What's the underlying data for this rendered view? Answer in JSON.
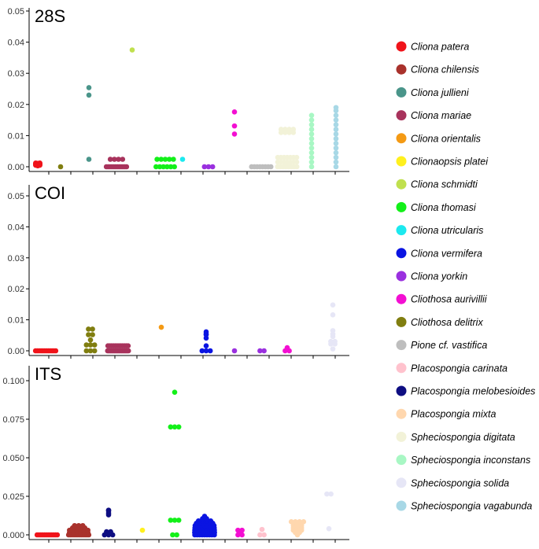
{
  "chart_data": {
    "type": "scatter",
    "title": "",
    "xlabel": "",
    "ylabel": "",
    "species": [
      {
        "name": "Cliona patera",
        "color": "#F0131A"
      },
      {
        "name": "Cliona chilensis",
        "color": "#A9322C"
      },
      {
        "name": "Cliona jullieni",
        "color": "#4A958A"
      },
      {
        "name": "Cliona mariae",
        "color": "#A8335C"
      },
      {
        "name": "Cliona orientalis",
        "color": "#F49A14"
      },
      {
        "name": "Clionaopsis platei",
        "color": "#FFF01E"
      },
      {
        "name": "Cliona schmidti",
        "color": "#C0E04E"
      },
      {
        "name": "Cliona thomasi",
        "color": "#13F019"
      },
      {
        "name": "Cliona utricularis",
        "color": "#1CE9EF"
      },
      {
        "name": "Cliona vermifera",
        "color": "#0A14E2"
      },
      {
        "name": "Cliona yorkin",
        "color": "#9A30DF"
      },
      {
        "name": "Cliothosa aurivillii",
        "color": "#F30FD2"
      },
      {
        "name": "Cliothosa delitrix",
        "color": "#807E10"
      },
      {
        "name": "Pione cf. vastifica",
        "color": "#BEBEBE"
      },
      {
        "name": "Placospongia carinata",
        "color": "#FFC2CD"
      },
      {
        "name": "Placospongia melobesioides",
        "color": "#0E0E82"
      },
      {
        "name": "Placospongia mixta",
        "color": "#FFD7AE"
      },
      {
        "name": "Spheciospongia digitata",
        "color": "#F2F2D8"
      },
      {
        "name": "Spheciospongia inconstans",
        "color": "#A8F7C4"
      },
      {
        "name": "Spheciospongia solida",
        "color": "#E6E6F6"
      },
      {
        "name": "Spheciospongia vagabunda",
        "color": "#A8D8E6"
      }
    ],
    "panels": [
      {
        "label": "28S",
        "ylim": [
          0,
          0.052
        ],
        "yticks": [
          "0.00",
          "0.01",
          "0.02",
          "0.03",
          "0.04",
          "0.05"
        ],
        "ytick_values": [
          0,
          0.01,
          0.02,
          0.03,
          0.04,
          0.05
        ],
        "groups": [
          {
            "species": "Cliona patera",
            "values": [
              0.0005,
              0.0008,
              0.001,
              0.0012,
              0.0006,
              0.0009,
              0.0011,
              0.0007,
              0.0004,
              0.001,
              0.0008,
              0.0012,
              0.0006,
              0.0009,
              0.0003,
              0.0005
            ]
          },
          {
            "species": "Cliothosa delitrix",
            "values": [
              0.0
            ]
          },
          {
            "species": "Cliona jullieni",
            "values": [
              0.0254,
              0.023,
              0.0024
            ]
          },
          {
            "species": "Cliona mariae",
            "values": [
              0.0,
              0.0,
              0.0,
              0.0,
              0.0,
              0.0,
              0.0,
              0.0,
              0.0,
              0.0,
              0.0,
              0.0,
              0.0024,
              0.0024,
              0.0024,
              0.0024
            ]
          },
          {
            "species": "Cliona schmidti",
            "values": [
              0.0375
            ]
          },
          {
            "species": "Cliona thomasi",
            "values": [
              0.0,
              0.0,
              0.0,
              0.0,
              0.0,
              0.0,
              0.0024,
              0.0024,
              0.0024,
              0.0024,
              0.0024
            ]
          },
          {
            "species": "Cliona utricularis",
            "values": [
              0.0024
            ]
          },
          {
            "species": "Cliona yorkin",
            "values": [
              0.0,
              0.0,
              0.0
            ]
          },
          {
            "species": "Cliothosa aurivillii",
            "values": [
              0.0176,
              0.0131,
              0.0105
            ]
          },
          {
            "species": "Pione cf. vastifica",
            "values": [
              0.0,
              0.0,
              0.0,
              0.0,
              0.0,
              0.0,
              0.0,
              0.0
            ]
          },
          {
            "species": "Spheciospongia digitata",
            "values": [
              0.0,
              0.0,
              0.0,
              0.0,
              0.0,
              0.0,
              0.0,
              0.0,
              0.0015,
              0.0015,
              0.0015,
              0.0015,
              0.0015,
              0.0015,
              0.0015,
              0.003,
              0.003,
              0.003,
              0.003,
              0.003,
              0.003,
              0.003,
              0.011,
              0.011,
              0.011,
              0.011,
              0.012,
              0.012,
              0.012,
              0.012
            ]
          },
          {
            "species": "Spheciospongia inconstans",
            "values": [
              0.0,
              0.0015,
              0.003,
              0.0045,
              0.006,
              0.0075,
              0.009,
              0.0105,
              0.012,
              0.0135,
              0.015,
              0.0165
            ]
          },
          {
            "species": "Spheciospongia vagabunda",
            "values": [
              0.0,
              0.0015,
              0.003,
              0.0045,
              0.006,
              0.0075,
              0.009,
              0.0105,
              0.012,
              0.0135,
              0.015,
              0.0165,
              0.018,
              0.019
            ]
          }
        ]
      },
      {
        "label": "COI",
        "ylim": [
          0,
          0.052
        ],
        "yticks": [
          "0.00",
          "0.01",
          "0.02",
          "0.03",
          "0.04",
          "0.05"
        ],
        "ytick_values": [
          0,
          0.01,
          0.02,
          0.03,
          0.04,
          0.05
        ],
        "groups": [
          {
            "species": "Cliona patera",
            "values": [
              0.0,
              0.0,
              0.0,
              0.0,
              0.0,
              0.0,
              0.0,
              0.0,
              0.0,
              0.0,
              0.0,
              0.0
            ]
          },
          {
            "species": "Cliothosa delitrix",
            "values": [
              0.0052,
              0.0052,
              0.007,
              0.007,
              0.0035,
              0.0019,
              0.0019,
              0.0019,
              0.0,
              0.0,
              0.0
            ]
          },
          {
            "species": "Cliona mariae",
            "values": [
              0.0,
              0.0,
              0.0,
              0.0,
              0.0,
              0.0,
              0.0,
              0.0,
              0.0,
              0.0,
              0.0,
              0.0,
              0.0,
              0.0,
              0.0,
              0.0,
              0.0,
              0.0,
              0.0016,
              0.0016,
              0.0016,
              0.0016,
              0.0016,
              0.0016,
              0.0016,
              0.0016,
              0.0016,
              0.0016,
              0.0016,
              0.0016
            ]
          },
          {
            "species": "Cliona orientalis",
            "values": [
              0.0076
            ]
          },
          {
            "species": "Cliona vermifera",
            "values": [
              0.0052,
              0.0061,
              0.0041,
              0.0054,
              0.0016,
              0.0,
              0.0,
              0.0
            ]
          },
          {
            "species": "Cliona yorkin",
            "values": [
              0.0
            ]
          },
          {
            "species": "Cliona yorkin",
            "values": [
              0.0,
              0.0
            ]
          },
          {
            "species": "Cliothosa aurivillii",
            "values": [
              0.0,
              0.0,
              0.001
            ]
          },
          {
            "species": "Spheciospongia solida",
            "values": [
              0.0148,
              0.0116,
              0.0065,
              0.0054,
              0.0046,
              0.003,
              0.003,
              0.0022,
              0.0022,
              0.0006
            ]
          }
        ]
      },
      {
        "label": "ITS",
        "ylim": [
          0,
          0.105
        ],
        "yticks": [
          "0.000",
          "0.025",
          "0.050",
          "0.075",
          "0.100"
        ],
        "ytick_values": [
          0,
          0.025,
          0.05,
          0.075,
          0.1
        ],
        "groups": [
          {
            "species": "Cliona patera",
            "values": [
              0.0,
              0.0,
              0.0,
              0.0,
              0.0,
              0.0,
              0.0,
              0.0,
              0.0,
              0.0,
              0.0,
              0.0
            ]
          },
          {
            "species": "Cliona chilensis",
            "values": [
              0.0,
              0.0,
              0.0,
              0.0,
              0.0,
              0.0,
              0.0,
              0.0,
              0.0,
              0.0,
              0.0,
              0.0,
              0.0015,
              0.0015,
              0.0015,
              0.0015,
              0.0015,
              0.0015,
              0.003,
              0.003,
              0.003,
              0.003,
              0.003,
              0.003,
              0.0045,
              0.0045,
              0.0045,
              0.0045,
              0.006,
              0.006,
              0.006
            ]
          },
          {
            "species": "Placospongia melobesioides",
            "values": [
              0.016,
              0.0155,
              0.014,
              0.013,
              0.002,
              0.002,
              0.0,
              0.0,
              0.0
            ]
          },
          {
            "species": "Clionaopsis platei",
            "values": [
              0.003
            ]
          },
          {
            "species": "Cliona thomasi",
            "values": [
              0.0925,
              0.07,
              0.07,
              0.07,
              0.0095,
              0.0095,
              0.0095,
              0.0,
              0.0
            ]
          },
          {
            "species": "Cliona vermifera",
            "values": [
              0.0,
              0.0,
              0.0,
              0.0,
              0.0,
              0.0,
              0.0,
              0.0,
              0.0,
              0.0015,
              0.0015,
              0.0015,
              0.0015,
              0.0015,
              0.0015,
              0.0015,
              0.0015,
              0.0015,
              0.0015,
              0.003,
              0.003,
              0.003,
              0.003,
              0.003,
              0.003,
              0.003,
              0.003,
              0.003,
              0.0045,
              0.0045,
              0.0045,
              0.0045,
              0.0045,
              0.0045,
              0.0045,
              0.0045,
              0.006,
              0.006,
              0.006,
              0.006,
              0.006,
              0.006,
              0.006,
              0.0075,
              0.0075,
              0.0075,
              0.0075,
              0.0075,
              0.009,
              0.009,
              0.009,
              0.009,
              0.0105,
              0.0105,
              0.012
            ]
          },
          {
            "species": "Cliothosa aurivillii",
            "values": [
              0.0,
              0.0015,
              0.003,
              0.0,
              0.003
            ]
          },
          {
            "species": "Placospongia carinata",
            "values": [
              0.0035,
              0.0,
              0.0
            ]
          },
          {
            "species": "Placospongia mixta",
            "values": [
              0.0,
              0.0015,
              0.0015,
              0.003,
              0.003,
              0.003,
              0.0045,
              0.0045,
              0.0045,
              0.006,
              0.006,
              0.006,
              0.0075,
              0.0075,
              0.0075,
              0.0085,
              0.0085,
              0.0085,
              0.0085
            ]
          },
          {
            "species": "Spheciospongia solida",
            "values": [
              0.0265,
              0.0265,
              0.004
            ]
          }
        ]
      }
    ],
    "legend": {
      "placement": "right",
      "entries": [
        "Cliona patera",
        "Cliona chilensis",
        "Cliona jullieni",
        "Cliona mariae",
        "Cliona orientalis",
        "Clionaopsis platei",
        "Cliona schmidti",
        "Cliona thomasi",
        "Cliona utricularis",
        "Cliona vermifera",
        "Cliona yorkin",
        "Cliothosa aurivillii",
        "Cliothosa delitrix",
        "Pione cf. vastifica",
        "Placospongia carinata",
        "Placospongia melobesioides",
        "Placospongia mixta",
        "Spheciospongia digitata",
        "Spheciospongia inconstans",
        "Spheciospongia solida",
        "Spheciospongia vagabunda"
      ]
    }
  }
}
